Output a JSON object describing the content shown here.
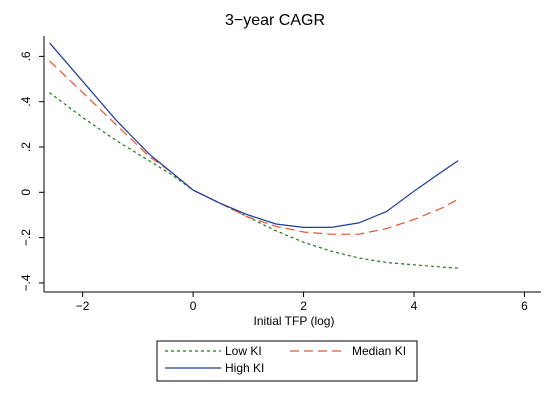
{
  "chart_data": {
    "type": "line",
    "title": "3−year CAGR",
    "xlabel": "Initial TFP (log)",
    "ylabel": "",
    "xlim": [
      -2.7,
      6.3
    ],
    "ylim": [
      -0.44,
      0.69
    ],
    "x_ticks": [
      -2,
      0,
      2,
      4,
      6
    ],
    "x_tick_labels": [
      "−2",
      "0",
      "2",
      "4",
      "6"
    ],
    "y_ticks": [
      -0.4,
      -0.2,
      0,
      0.2,
      0.4,
      0.6
    ],
    "y_tick_labels": [
      "−.4",
      "−.2",
      "0",
      ".2",
      ".4",
      ".6"
    ],
    "grid": false,
    "legend_position": "bottom",
    "series": [
      {
        "name": "Low KI",
        "color": "#1a7a1a",
        "dash": "dotted",
        "x": [
          -2.6,
          -2.0,
          -1.4,
          -0.8,
          -0.4,
          0,
          0.5,
          1.0,
          1.5,
          2.0,
          2.5,
          3.0,
          3.5,
          4.0,
          4.5,
          4.8
        ],
        "y": [
          0.44,
          0.33,
          0.23,
          0.14,
          0.08,
          0.01,
          -0.05,
          -0.11,
          -0.17,
          -0.22,
          -0.26,
          -0.29,
          -0.31,
          -0.32,
          -0.33,
          -0.335
        ]
      },
      {
        "name": "Median KI",
        "color": "#e8542a",
        "dash": "dashed",
        "x": [
          -2.6,
          -2.0,
          -1.4,
          -0.8,
          -0.4,
          0,
          0.5,
          1.0,
          1.5,
          2.0,
          2.5,
          3.0,
          3.5,
          4.0,
          4.5,
          4.8
        ],
        "y": [
          0.58,
          0.44,
          0.3,
          0.16,
          0.09,
          0.01,
          -0.05,
          -0.11,
          -0.15,
          -0.175,
          -0.185,
          -0.185,
          -0.16,
          -0.12,
          -0.07,
          -0.03
        ]
      },
      {
        "name": "High KI",
        "color": "#1f3d99",
        "dash": "solid",
        "x": [
          -2.6,
          -2.0,
          -1.4,
          -0.8,
          -0.4,
          0,
          0.5,
          1.0,
          1.5,
          2.0,
          2.5,
          3.0,
          3.5,
          4.0,
          4.5,
          4.8
        ],
        "y": [
          0.66,
          0.49,
          0.32,
          0.17,
          0.09,
          0.01,
          -0.05,
          -0.1,
          -0.14,
          -0.155,
          -0.155,
          -0.135,
          -0.085,
          0.005,
          0.09,
          0.14
        ]
      }
    ]
  }
}
